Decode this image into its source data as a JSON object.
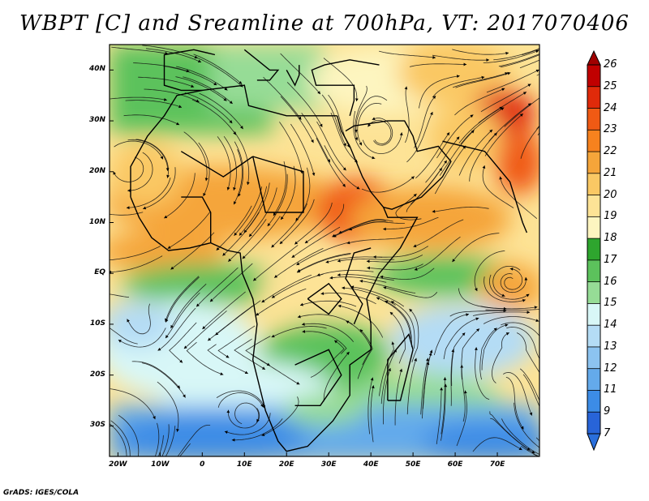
{
  "title": "WBPT [C] and Sreamline at 700hPa, VT: 2017070406",
  "credit": "GrADS: IGES/COLA",
  "map": {
    "lat_labels": [
      "40N",
      "30N",
      "20N",
      "10N",
      "EQ",
      "10S",
      "20S",
      "30S"
    ],
    "lat_values": [
      40,
      30,
      20,
      10,
      0,
      -10,
      -20,
      -30
    ],
    "lon_labels": [
      "20W",
      "10W",
      "0",
      "10E",
      "20E",
      "30E",
      "40E",
      "50E",
      "60E",
      "70E"
    ],
    "lon_values": [
      -20,
      -10,
      0,
      10,
      20,
      30,
      40,
      50,
      60,
      70
    ],
    "lat_range": [
      -36,
      45
    ],
    "lon_range": [
      -22,
      80
    ]
  },
  "colorbar": {
    "labels": [
      "26",
      "25",
      "24",
      "23",
      "22",
      "21",
      "20",
      "19",
      "18",
      "17",
      "16",
      "15",
      "14",
      "13",
      "12",
      "11",
      "9",
      "7"
    ],
    "colors": [
      "#c00000",
      "#e02a0a",
      "#f05a14",
      "#f7821e",
      "#f5a53a",
      "#fac864",
      "#fde396",
      "#fdf5c0",
      "#2ea52e",
      "#5cc25c",
      "#96dc96",
      "#d8f7f7",
      "#b4dcf5",
      "#8cc3f0",
      "#64aaeb",
      "#3c8ce6",
      "#2864d8"
    ],
    "top_color": "#a00000",
    "bottom_color": "#2a6fdc"
  }
}
